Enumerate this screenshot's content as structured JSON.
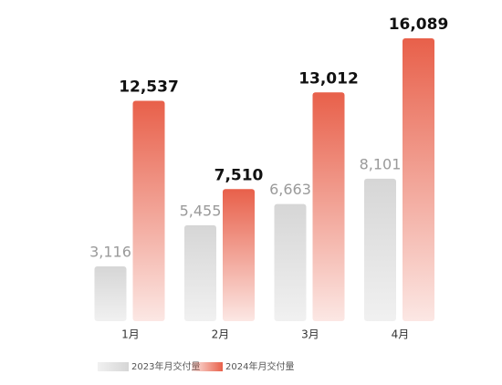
{
  "chart_data": {
    "type": "bar",
    "categories": [
      "1月",
      "2月",
      "3月",
      "4月"
    ],
    "series": [
      {
        "name": "2023年月交付量",
        "color": "#d6d6d6",
        "values": [
          3116,
          5455,
          6663,
          8101
        ],
        "value_labels": [
          "3,116",
          "5,455",
          "6,663",
          "8,101"
        ]
      },
      {
        "name": "2024年月交付量",
        "color": "#e8604a",
        "values": [
          12537,
          7510,
          13012,
          16089
        ],
        "value_labels": [
          "12,537",
          "7,510",
          "13,012",
          "16,089"
        ]
      }
    ]
  }
}
